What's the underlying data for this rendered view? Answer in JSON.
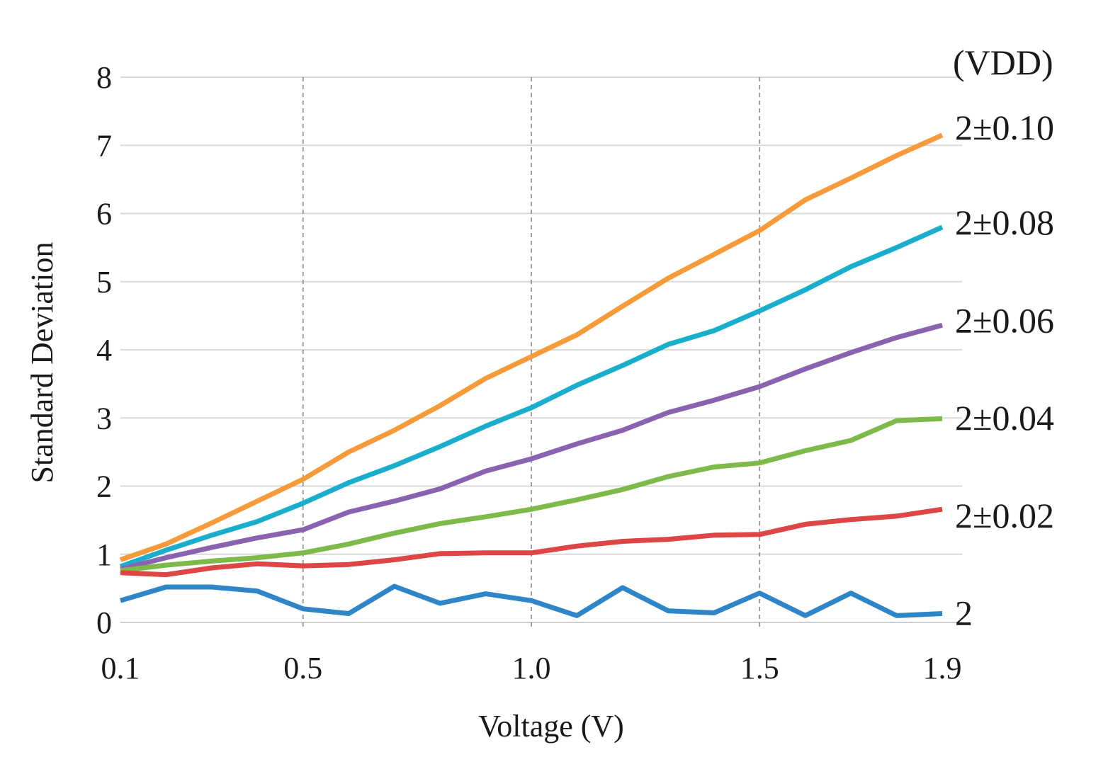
{
  "chart_data": {
    "type": "line",
    "title": "",
    "xlabel": "Voltage (V)",
    "ylabel": "Standard Deviation",
    "legend_title": "(VDD)",
    "xlim": [
      0.1,
      1.9
    ],
    "ylim": [
      0,
      8
    ],
    "x_ticks": [
      0.1,
      0.5,
      1.0,
      1.5,
      1.9
    ],
    "x_tick_labels": [
      "0.1",
      "0.5",
      "1.0",
      "1.5",
      "1.9"
    ],
    "y_ticks": [
      0,
      1,
      2,
      3,
      4,
      5,
      6,
      7,
      8
    ],
    "y_tick_labels": [
      "0",
      "1",
      "2",
      "3",
      "4",
      "5",
      "6",
      "7",
      "8"
    ],
    "vertical_dashed_gridlines_at": [
      0.5,
      1.0,
      1.5
    ],
    "horizontal_gridlines": true,
    "x": [
      0.1,
      0.2,
      0.3,
      0.4,
      0.5,
      0.6,
      0.7,
      0.8,
      0.9,
      1.0,
      1.1,
      1.2,
      1.3,
      1.4,
      1.5,
      1.6,
      1.7,
      1.8,
      1.9
    ],
    "series": [
      {
        "name": "2±0.10",
        "color": "#F79A3A",
        "values": [
          0.92,
          1.15,
          1.46,
          1.78,
          2.1,
          2.5,
          2.82,
          3.18,
          3.58,
          3.9,
          4.22,
          4.64,
          5.05,
          5.4,
          5.75,
          6.2,
          6.52,
          6.85,
          7.15
        ]
      },
      {
        "name": "2±0.08",
        "color": "#18AECC",
        "values": [
          0.82,
          1.06,
          1.28,
          1.48,
          1.75,
          2.05,
          2.3,
          2.58,
          2.88,
          3.15,
          3.48,
          3.77,
          4.08,
          4.28,
          4.57,
          4.88,
          5.22,
          5.5,
          5.8
        ]
      },
      {
        "name": "2±0.06",
        "color": "#8A63B0",
        "values": [
          0.78,
          0.95,
          1.1,
          1.24,
          1.36,
          1.62,
          1.78,
          1.96,
          2.22,
          2.4,
          2.62,
          2.82,
          3.08,
          3.26,
          3.46,
          3.72,
          3.96,
          4.18,
          4.36
        ]
      },
      {
        "name": "2±0.04",
        "color": "#7DBA4A",
        "values": [
          0.76,
          0.84,
          0.9,
          0.95,
          1.02,
          1.15,
          1.31,
          1.45,
          1.55,
          1.66,
          1.8,
          1.95,
          2.14,
          2.28,
          2.34,
          2.52,
          2.67,
          2.96,
          2.99
        ]
      },
      {
        "name": "2±0.02",
        "color": "#DE4545",
        "values": [
          0.73,
          0.7,
          0.8,
          0.86,
          0.83,
          0.85,
          0.92,
          1.01,
          1.02,
          1.02,
          1.12,
          1.19,
          1.22,
          1.28,
          1.29,
          1.44,
          1.51,
          1.56,
          1.66
        ]
      },
      {
        "name": "2",
        "color": "#2E86C9",
        "values": [
          0.32,
          0.52,
          0.52,
          0.46,
          0.2,
          0.13,
          0.53,
          0.28,
          0.42,
          0.32,
          0.1,
          0.51,
          0.17,
          0.14,
          0.43,
          0.1,
          0.43,
          0.1,
          0.13
        ]
      }
    ]
  }
}
